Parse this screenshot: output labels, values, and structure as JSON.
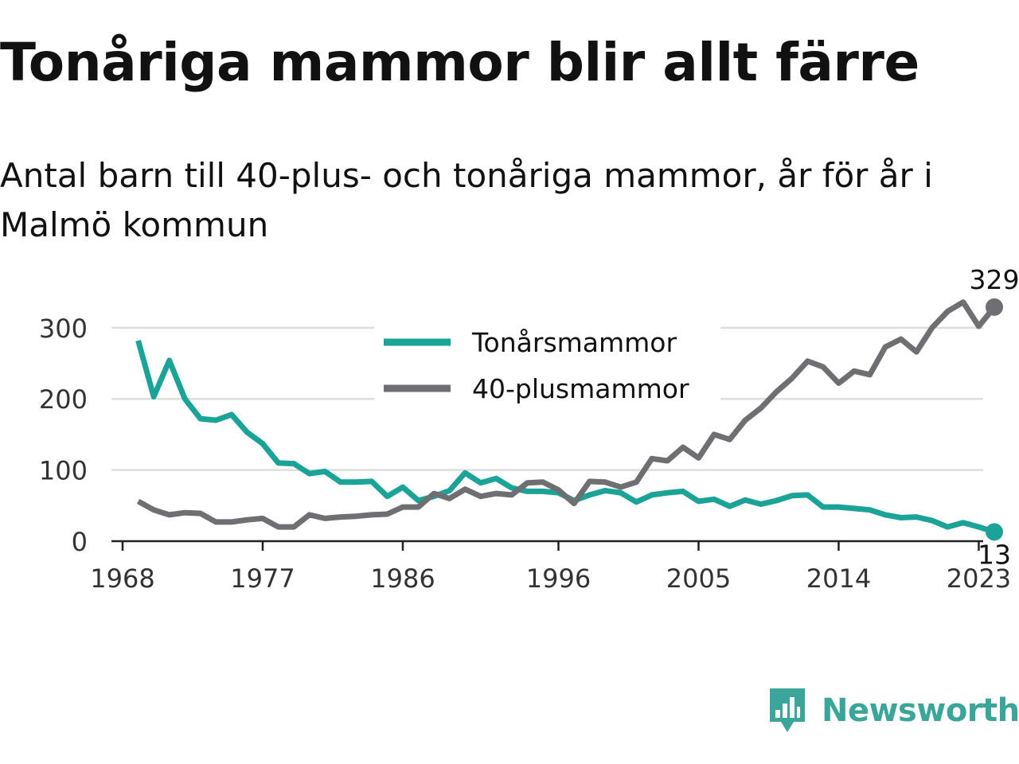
{
  "title": "Tonåriga mammor blir allt färre",
  "subtitle": "Antal barn till 40-plus- och tonåriga mammor, år för år i Malmö kommun",
  "brand": {
    "name": "Newsworthy",
    "icon": "newsworthy-bar-chart-icon"
  },
  "colors": {
    "teen": "#1aa396",
    "forty": "#6e6e73",
    "grid": "#dedede",
    "axis": "#222222"
  },
  "chart_data": {
    "type": "line",
    "xlim": [
      1968,
      2024
    ],
    "ylim": [
      0,
      330
    ],
    "xticks": [
      1968,
      1977,
      1986,
      1996,
      2005,
      2014,
      2023
    ],
    "yticks": [
      0,
      100,
      200,
      300
    ],
    "grid": true,
    "legend_position": "top-center",
    "x": [
      1969,
      1970,
      1971,
      1972,
      1973,
      1974,
      1975,
      1976,
      1977,
      1978,
      1979,
      1980,
      1981,
      1982,
      1983,
      1984,
      1985,
      1986,
      1987,
      1988,
      1989,
      1990,
      1991,
      1992,
      1993,
      1994,
      1995,
      1996,
      1997,
      1998,
      1999,
      2000,
      2001,
      2002,
      2003,
      2004,
      2005,
      2006,
      2007,
      2008,
      2009,
      2010,
      2011,
      2012,
      2013,
      2014,
      2015,
      2016,
      2017,
      2018,
      2019,
      2020,
      2021,
      2022,
      2023,
      2024
    ],
    "series": [
      {
        "name": "Tonårsmammor",
        "color": "#1aa396",
        "end_label": "13",
        "values": [
          282,
          203,
          254,
          200,
          172,
          170,
          178,
          153,
          137,
          110,
          109,
          95,
          98,
          83,
          83,
          84,
          63,
          76,
          57,
          63,
          71,
          96,
          82,
          88,
          75,
          70,
          70,
          68,
          57,
          65,
          71,
          68,
          55,
          65,
          68,
          70,
          56,
          59,
          49,
          58,
          52,
          57,
          64,
          65,
          48,
          48,
          46,
          44,
          37,
          33,
          34,
          29,
          20,
          26,
          20,
          13
        ]
      },
      {
        "name": "40-plusmammor",
        "color": "#6e6e73",
        "end_label": "329",
        "values": [
          56,
          44,
          37,
          40,
          39,
          27,
          27,
          30,
          32,
          20,
          20,
          37,
          32,
          34,
          35,
          37,
          38,
          48,
          48,
          67,
          60,
          73,
          63,
          67,
          65,
          82,
          83,
          72,
          53,
          84,
          83,
          76,
          83,
          116,
          113,
          132,
          117,
          150,
          143,
          170,
          187,
          210,
          229,
          253,
          245,
          222,
          239,
          234,
          273,
          284,
          266,
          300,
          323,
          336,
          302,
          329
        ]
      }
    ]
  }
}
